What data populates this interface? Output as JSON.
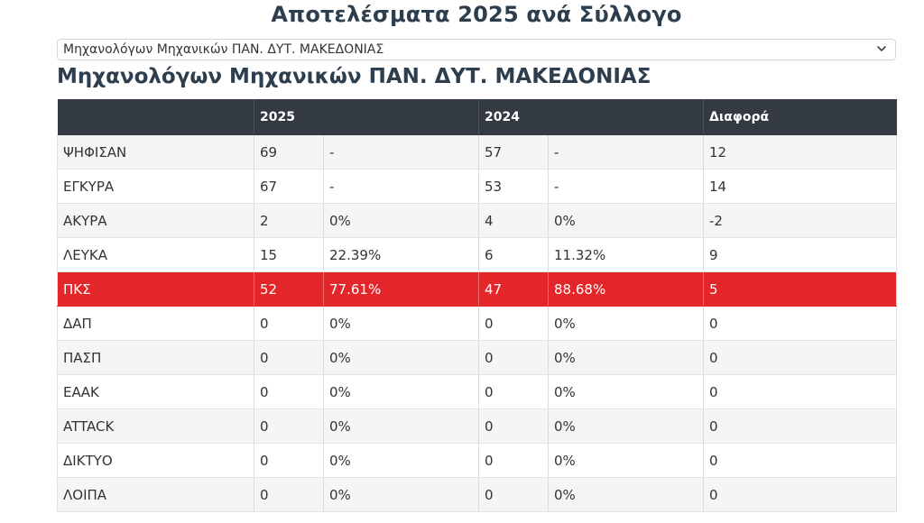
{
  "page": {
    "title": "Αποτελέσματα 2025 ανά Σύλλογο",
    "subtitle": "Μηχανολόγων Μηχανικών ΠΑΝ. ΔΥΤ. ΜΑΚΕΔΟΝΙΑΣ"
  },
  "selector": {
    "selected_value": "Μηχανολόγων Μηχανικών ΠΑΝ. ΔΥΤ. ΜΑΚΕΔΟΝΙΑΣ"
  },
  "table": {
    "headers": [
      "",
      "2025",
      "2024",
      "Διαφορά"
    ],
    "highlight_color": "#e3262a",
    "header_color": "#333a42",
    "rows": [
      {
        "label": "ΨΗΦΙΣΑΝ",
        "v2025": "69",
        "p2025": "-",
        "v2024": "57",
        "p2024": "-",
        "diff": "12",
        "highlight": false
      },
      {
        "label": "ΕΓΚΥΡΑ",
        "v2025": "67",
        "p2025": "-",
        "v2024": "53",
        "p2024": "-",
        "diff": "14",
        "highlight": false
      },
      {
        "label": "ΑΚΥΡΑ",
        "v2025": "2",
        "p2025": "0%",
        "v2024": "4",
        "p2024": "0%",
        "diff": "-2",
        "highlight": false
      },
      {
        "label": "ΛΕΥΚΑ",
        "v2025": "15",
        "p2025": "22.39%",
        "v2024": "6",
        "p2024": "11.32%",
        "diff": "9",
        "highlight": false
      },
      {
        "label": "ΠΚΣ",
        "v2025": "52",
        "p2025": "77.61%",
        "v2024": "47",
        "p2024": "88.68%",
        "diff": "5",
        "highlight": true
      },
      {
        "label": "ΔΑΠ",
        "v2025": "0",
        "p2025": "0%",
        "v2024": "0",
        "p2024": "0%",
        "diff": "0",
        "highlight": false
      },
      {
        "label": "ΠΑΣΠ",
        "v2025": "0",
        "p2025": "0%",
        "v2024": "0",
        "p2024": "0%",
        "diff": "0",
        "highlight": false
      },
      {
        "label": "ΕΑΑΚ",
        "v2025": "0",
        "p2025": "0%",
        "v2024": "0",
        "p2024": "0%",
        "diff": "0",
        "highlight": false
      },
      {
        "label": "ATTACK",
        "v2025": "0",
        "p2025": "0%",
        "v2024": "0",
        "p2024": "0%",
        "diff": "0",
        "highlight": false
      },
      {
        "label": "ΔΙΚΤΥΟ",
        "v2025": "0",
        "p2025": "0%",
        "v2024": "0",
        "p2024": "0%",
        "diff": "0",
        "highlight": false
      },
      {
        "label": "ΛΟΙΠΑ",
        "v2025": "0",
        "p2025": "0%",
        "v2024": "0",
        "p2024": "0%",
        "diff": "0",
        "highlight": false
      }
    ]
  },
  "icons": {
    "dropdown": "chevron-down-icon"
  }
}
